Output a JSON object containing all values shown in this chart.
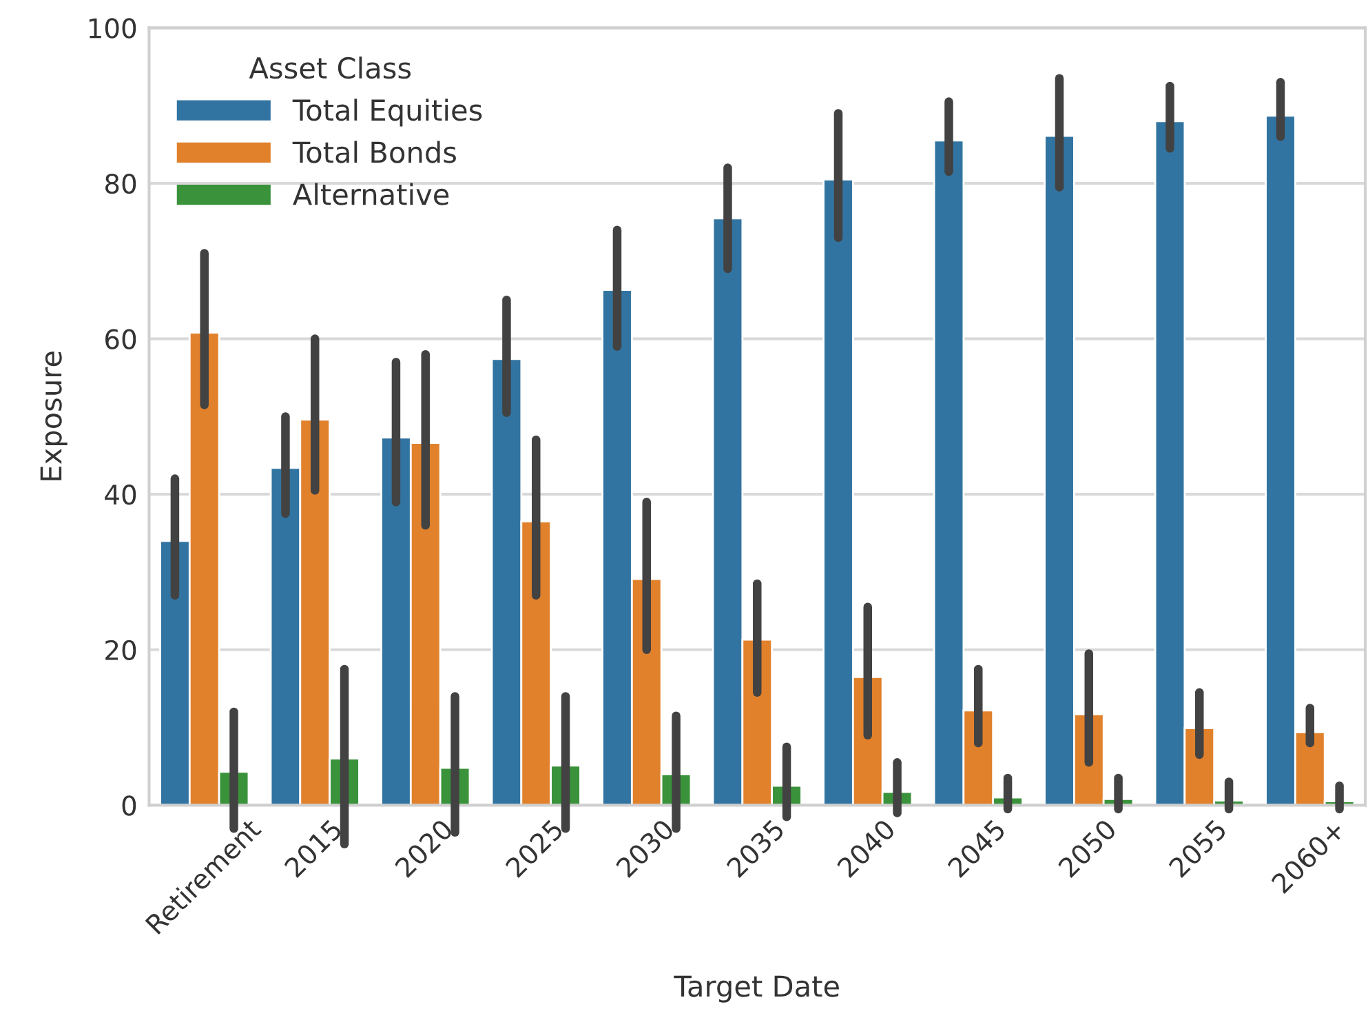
{
  "chart_data": {
    "type": "bar",
    "xlabel": "Target Date",
    "ylabel": "Exposure",
    "legend_title": "Asset Class",
    "categories": [
      "Retirement",
      "2015",
      "2020",
      "2025",
      "2030",
      "2035",
      "2040",
      "2045",
      "2050",
      "2055",
      "2060+"
    ],
    "series": [
      {
        "name": "Total Equities",
        "color": "#3274a1",
        "values": [
          34.0,
          43.4,
          47.3,
          57.4,
          66.3,
          75.5,
          80.5,
          85.5,
          86.1,
          88.0,
          88.7
        ],
        "errors": [
          [
            27,
            42
          ],
          [
            37.5,
            50
          ],
          [
            39,
            57
          ],
          [
            50.5,
            65
          ],
          [
            59,
            74
          ],
          [
            69,
            82
          ],
          [
            73,
            89
          ],
          [
            81.5,
            90.5
          ],
          [
            79.5,
            93.5
          ],
          [
            84.5,
            92.5
          ],
          [
            86,
            93
          ]
        ]
      },
      {
        "name": "Total Bonds",
        "color": "#e1812c",
        "values": [
          60.8,
          49.6,
          46.6,
          36.5,
          29.1,
          21.3,
          16.5,
          12.2,
          11.7,
          9.9,
          9.4
        ],
        "errors": [
          [
            51.5,
            71
          ],
          [
            40.5,
            60
          ],
          [
            36,
            58
          ],
          [
            27,
            47
          ],
          [
            20,
            39
          ],
          [
            14.5,
            28.5
          ],
          [
            9,
            25.5
          ],
          [
            8,
            17.5
          ],
          [
            5.5,
            19.5
          ],
          [
            6.5,
            14.5
          ],
          [
            8,
            12.5
          ]
        ]
      },
      {
        "name": "Alternative",
        "color": "#3a923a",
        "values": [
          4.3,
          6.0,
          4.8,
          5.1,
          4.0,
          2.5,
          1.7,
          1.0,
          0.8,
          0.6,
          0.5
        ],
        "errors": [
          [
            -3,
            12
          ],
          [
            -5,
            17.5
          ],
          [
            -3.5,
            14
          ],
          [
            -3,
            14
          ],
          [
            -3,
            11.5
          ],
          [
            -1.5,
            7.5
          ],
          [
            -1,
            5.5
          ],
          [
            -0.5,
            3.5
          ],
          [
            -0.5,
            3.5
          ],
          [
            -0.5,
            3
          ],
          [
            -0.5,
            2.5
          ]
        ]
      }
    ],
    "ylim": [
      0,
      100
    ],
    "yticks": [
      0,
      20,
      40,
      60,
      80,
      100
    ],
    "grid": "y",
    "legend": "top left"
  }
}
